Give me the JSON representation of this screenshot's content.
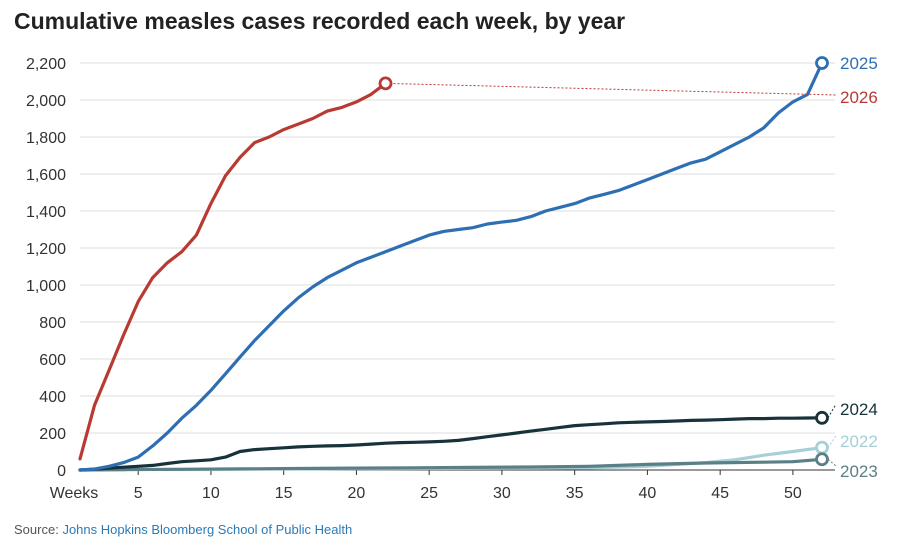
{
  "title": "Cumulative measles cases recorded each week, by year",
  "source_prefix": "Source:",
  "source_name": "Johns Hopkins Bloomberg School of Public Health",
  "chart_data": {
    "type": "line",
    "title": "Cumulative measles cases recorded each week, by year",
    "xlabel": "Weeks",
    "ylabel": "",
    "xlim": [
      1,
      52
    ],
    "ylim": [
      0,
      2200
    ],
    "grid": true,
    "x_ticks": [
      5,
      10,
      15,
      20,
      25,
      30,
      35,
      40,
      45,
      50
    ],
    "x_tick_labels": [
      "5",
      "10",
      "15",
      "20",
      "25",
      "30",
      "35",
      "40",
      "45",
      "50"
    ],
    "y_ticks": [
      0,
      200,
      400,
      600,
      800,
      1000,
      1200,
      1400,
      1600,
      1800,
      2000,
      2200
    ],
    "y_tick_labels": [
      "0",
      "200",
      "400",
      "600",
      "800",
      "1,000",
      "1,200",
      "1,400",
      "1,600",
      "1,800",
      "2,000",
      "2,200"
    ],
    "series": [
      {
        "name": "2026",
        "color": "#b83a33",
        "x": [
          1,
          2,
          3,
          4,
          5,
          6,
          7,
          8,
          9,
          10,
          11,
          12,
          13,
          14,
          15,
          16,
          17,
          18,
          19,
          20,
          21,
          22
        ],
        "y": [
          60,
          350,
          540,
          730,
          910,
          1040,
          1120,
          1180,
          1270,
          1440,
          1590,
          1690,
          1770,
          1800,
          1840,
          1870,
          1900,
          1940,
          1960,
          1990,
          2030,
          2090
        ]
      },
      {
        "name": "2025",
        "color": "#2e6fb4",
        "x": [
          1,
          2,
          3,
          4,
          5,
          6,
          7,
          8,
          9,
          10,
          11,
          12,
          13,
          14,
          15,
          16,
          17,
          18,
          19,
          20,
          21,
          22,
          23,
          24,
          25,
          26,
          27,
          28,
          29,
          30,
          31,
          32,
          33,
          34,
          35,
          36,
          37,
          38,
          39,
          40,
          41,
          42,
          43,
          44,
          45,
          46,
          47,
          48,
          49,
          50,
          51,
          52
        ],
        "y": [
          0,
          5,
          20,
          40,
          70,
          130,
          200,
          280,
          350,
          430,
          520,
          610,
          700,
          780,
          860,
          930,
          990,
          1040,
          1080,
          1120,
          1150,
          1180,
          1210,
          1240,
          1270,
          1290,
          1300,
          1310,
          1330,
          1340,
          1350,
          1370,
          1400,
          1420,
          1440,
          1470,
          1490,
          1510,
          1540,
          1570,
          1600,
          1630,
          1660,
          1680,
          1720,
          1760,
          1800,
          1850,
          1930,
          1990,
          2030,
          2200
        ]
      },
      {
        "name": "2024",
        "color": "#17323b",
        "x": [
          1,
          2,
          3,
          4,
          5,
          6,
          7,
          8,
          9,
          10,
          11,
          12,
          13,
          14,
          15,
          16,
          17,
          18,
          19,
          20,
          21,
          22,
          23,
          24,
          25,
          26,
          27,
          28,
          29,
          30,
          31,
          32,
          33,
          34,
          35,
          36,
          37,
          38,
          39,
          40,
          41,
          42,
          43,
          44,
          45,
          46,
          47,
          48,
          49,
          50,
          51,
          52
        ],
        "y": [
          0,
          5,
          10,
          15,
          20,
          25,
          35,
          45,
          50,
          55,
          70,
          100,
          110,
          115,
          120,
          125,
          128,
          130,
          132,
          135,
          140,
          145,
          148,
          150,
          152,
          155,
          160,
          170,
          180,
          190,
          200,
          210,
          220,
          230,
          240,
          245,
          250,
          255,
          258,
          260,
          262,
          265,
          268,
          270,
          272,
          275,
          278,
          278,
          280,
          280,
          281,
          282
        ]
      },
      {
        "name": "2022",
        "color": "#a6cfd8",
        "x": [
          1,
          4,
          8,
          12,
          16,
          20,
          24,
          28,
          32,
          36,
          40,
          42,
          44,
          46,
          48,
          50,
          52
        ],
        "y": [
          0,
          2,
          4,
          5,
          6,
          7,
          8,
          9,
          10,
          12,
          20,
          30,
          40,
          55,
          80,
          100,
          121
        ]
      },
      {
        "name": "2023",
        "color": "#5b7f87",
        "x": [
          1,
          4,
          8,
          12,
          16,
          20,
          24,
          28,
          32,
          36,
          40,
          44,
          48,
          50,
          52
        ],
        "y": [
          0,
          2,
          4,
          6,
          8,
          10,
          12,
          14,
          16,
          20,
          30,
          38,
          42,
          45,
          58
        ]
      }
    ]
  }
}
